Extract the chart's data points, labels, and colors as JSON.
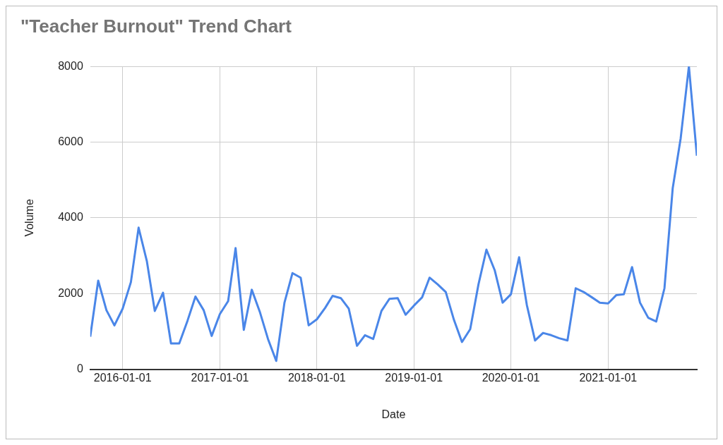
{
  "chart_data": {
    "type": "line",
    "title": "\"Teacher Burnout\" Trend Chart",
    "xlabel": "Date",
    "ylabel": "Volume",
    "x": [
      "2015-09",
      "2015-10",
      "2015-11",
      "2015-12",
      "2016-01",
      "2016-02",
      "2016-03",
      "2016-04",
      "2016-05",
      "2016-06",
      "2016-07",
      "2016-08",
      "2016-09",
      "2016-10",
      "2016-11",
      "2016-12",
      "2017-01",
      "2017-02",
      "2017-03",
      "2017-04",
      "2017-05",
      "2017-06",
      "2017-07",
      "2017-08",
      "2017-09",
      "2017-10",
      "2017-11",
      "2017-12",
      "2018-01",
      "2018-02",
      "2018-03",
      "2018-04",
      "2018-05",
      "2018-06",
      "2018-07",
      "2018-08",
      "2018-09",
      "2018-10",
      "2018-11",
      "2018-12",
      "2019-01",
      "2019-02",
      "2019-03",
      "2019-04",
      "2019-05",
      "2019-06",
      "2019-07",
      "2019-08",
      "2019-09",
      "2019-10",
      "2019-11",
      "2019-12",
      "2020-01",
      "2020-02",
      "2020-03",
      "2020-04",
      "2020-05",
      "2020-06",
      "2020-07",
      "2020-08",
      "2020-09",
      "2020-10",
      "2020-11",
      "2020-12",
      "2021-01",
      "2021-02",
      "2021-03",
      "2021-04",
      "2021-05",
      "2021-06",
      "2021-07",
      "2021-08",
      "2021-09",
      "2021-10",
      "2021-11",
      "2021-12"
    ],
    "series": [
      {
        "color": "#4a86e8",
        "values": [
          860,
          2340,
          1560,
          1160,
          1600,
          2300,
          3740,
          2860,
          1540,
          2020,
          680,
          680,
          1280,
          1920,
          1560,
          880,
          1460,
          1800,
          3200,
          1040,
          2100,
          1500,
          800,
          220,
          1760,
          2540,
          2420,
          1160,
          1320,
          1620,
          1940,
          1880,
          1600,
          620,
          900,
          800,
          1540,
          1860,
          1880,
          1440,
          1680,
          1900,
          2420,
          2240,
          2040,
          1300,
          720,
          1060,
          2240,
          3160,
          2620,
          1760,
          1980,
          2960,
          1700,
          760,
          960,
          900,
          820,
          760,
          2140,
          2040,
          1900,
          1760,
          1740,
          1960,
          1980,
          2700,
          1760,
          1360,
          1260,
          2140,
          4780,
          6100,
          8000,
          5640
        ]
      }
    ],
    "xlim": [
      "2015-09",
      "2021-12"
    ],
    "xticks": [
      {
        "value": "2016-01-01",
        "label": "2016-01-01"
      },
      {
        "value": "2017-01-01",
        "label": "2017-01-01"
      },
      {
        "value": "2018-01-01",
        "label": "2018-01-01"
      },
      {
        "value": "2019-01-01",
        "label": "2019-01-01"
      },
      {
        "value": "2020-01-01",
        "label": "2020-01-01"
      },
      {
        "value": "2021-01-01",
        "label": "2021-01-01"
      }
    ],
    "ylim": [
      0,
      8000
    ],
    "yticks": [
      0,
      2000,
      4000,
      6000,
      8000
    ],
    "grid": true,
    "legend": false,
    "marker": "none",
    "line_style": "solid"
  }
}
